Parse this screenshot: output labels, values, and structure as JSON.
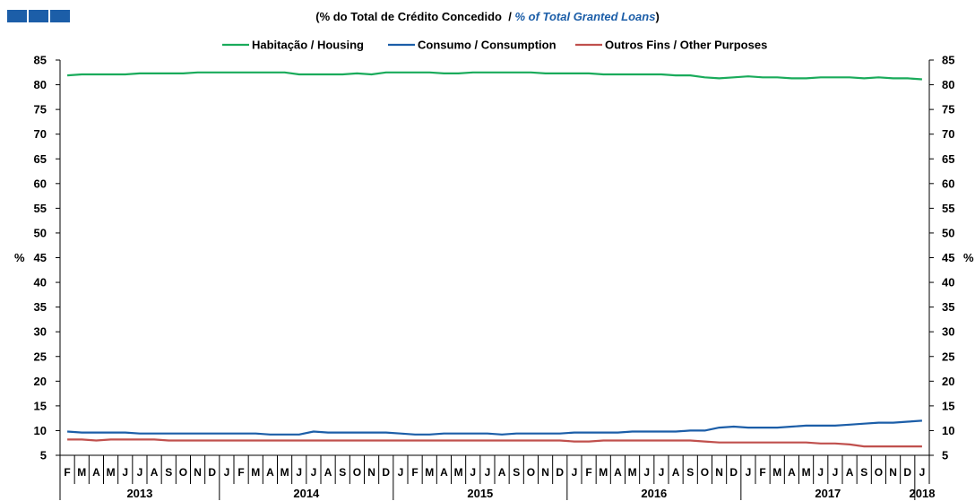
{
  "brand": {
    "colors": [
      "#1c5ea8",
      "#1c5ea8",
      "#1c5ea8"
    ]
  },
  "subtitle": {
    "open": "(",
    "pt": "% do Total de Crédito Concedido",
    "sep": "  / ",
    "en": "% of  Total Granted Loans",
    "close": ")"
  },
  "chart_data": {
    "type": "line",
    "ylabel_left": "%",
    "ylabel_right": "%",
    "ylim": [
      5,
      85
    ],
    "yticks": [
      5,
      10,
      15,
      20,
      25,
      30,
      35,
      40,
      45,
      50,
      55,
      60,
      65,
      70,
      75,
      80,
      85
    ],
    "grid": false,
    "legend_position": "top",
    "month_labels": [
      "F",
      "M",
      "A",
      "M",
      "J",
      "J",
      "A",
      "S",
      "O",
      "N",
      "D",
      "J",
      "F",
      "M",
      "A",
      "M",
      "J",
      "J",
      "A",
      "S",
      "O",
      "N",
      "D",
      "J",
      "F",
      "M",
      "A",
      "M",
      "J",
      "J",
      "A",
      "S",
      "O",
      "N",
      "D",
      "J",
      "F",
      "M",
      "A",
      "M",
      "J",
      "J",
      "A",
      "S",
      "O",
      "N",
      "D",
      "J",
      "F",
      "M",
      "A",
      "M",
      "J",
      "J",
      "A",
      "S",
      "O",
      "N",
      "D",
      "J"
    ],
    "years": [
      {
        "label": "2013",
        "start": 0,
        "end": 11
      },
      {
        "label": "2014",
        "start": 11,
        "end": 23
      },
      {
        "label": "2015",
        "start": 23,
        "end": 35
      },
      {
        "label": "2016",
        "start": 35,
        "end": 47
      },
      {
        "label": "2017",
        "start": 47,
        "end": 59
      },
      {
        "label": "2018",
        "start": 59,
        "end": 60
      }
    ],
    "series": [
      {
        "name": "Habitação / Housing",
        "color": "#1aab5b",
        "values": [
          81.9,
          82.1,
          82.1,
          82.1,
          82.1,
          82.3,
          82.3,
          82.3,
          82.3,
          82.5,
          82.5,
          82.5,
          82.5,
          82.5,
          82.5,
          82.5,
          82.1,
          82.1,
          82.1,
          82.1,
          82.3,
          82.1,
          82.5,
          82.5,
          82.5,
          82.5,
          82.3,
          82.3,
          82.5,
          82.5,
          82.5,
          82.5,
          82.5,
          82.3,
          82.3,
          82.3,
          82.3,
          82.1,
          82.1,
          82.1,
          82.1,
          82.1,
          81.9,
          81.9,
          81.5,
          81.3,
          81.5,
          81.7,
          81.5,
          81.5,
          81.3,
          81.3,
          81.5,
          81.5,
          81.5,
          81.3,
          81.5,
          81.3,
          81.3,
          81.1
        ]
      },
      {
        "name": "Consumo / Consumption",
        "color": "#1c5ea8",
        "values": [
          9.8,
          9.6,
          9.6,
          9.6,
          9.6,
          9.4,
          9.4,
          9.4,
          9.4,
          9.4,
          9.4,
          9.4,
          9.4,
          9.4,
          9.2,
          9.2,
          9.2,
          9.8,
          9.6,
          9.6,
          9.6,
          9.6,
          9.6,
          9.4,
          9.2,
          9.2,
          9.4,
          9.4,
          9.4,
          9.4,
          9.2,
          9.4,
          9.4,
          9.4,
          9.4,
          9.6,
          9.6,
          9.6,
          9.6,
          9.8,
          9.8,
          9.8,
          9.8,
          10.0,
          10.0,
          10.6,
          10.8,
          10.6,
          10.6,
          10.6,
          10.8,
          11.0,
          11.0,
          11.0,
          11.2,
          11.4,
          11.6,
          11.6,
          11.8,
          12.0
        ]
      },
      {
        "name": "Outros Fins / Other Purposes",
        "color": "#c0504d",
        "values": [
          8.2,
          8.2,
          8.0,
          8.2,
          8.2,
          8.2,
          8.2,
          8.0,
          8.0,
          8.0,
          8.0,
          8.0,
          8.0,
          8.0,
          8.0,
          8.0,
          8.0,
          8.0,
          8.0,
          8.0,
          8.0,
          8.0,
          8.0,
          8.0,
          8.0,
          8.0,
          8.0,
          8.0,
          8.0,
          8.0,
          8.0,
          8.0,
          8.0,
          8.0,
          8.0,
          7.8,
          7.8,
          8.0,
          8.0,
          8.0,
          8.0,
          8.0,
          8.0,
          8.0,
          7.8,
          7.6,
          7.6,
          7.6,
          7.6,
          7.6,
          7.6,
          7.6,
          7.4,
          7.4,
          7.2,
          6.8,
          6.8,
          6.8,
          6.8,
          6.8
        ]
      }
    ]
  }
}
